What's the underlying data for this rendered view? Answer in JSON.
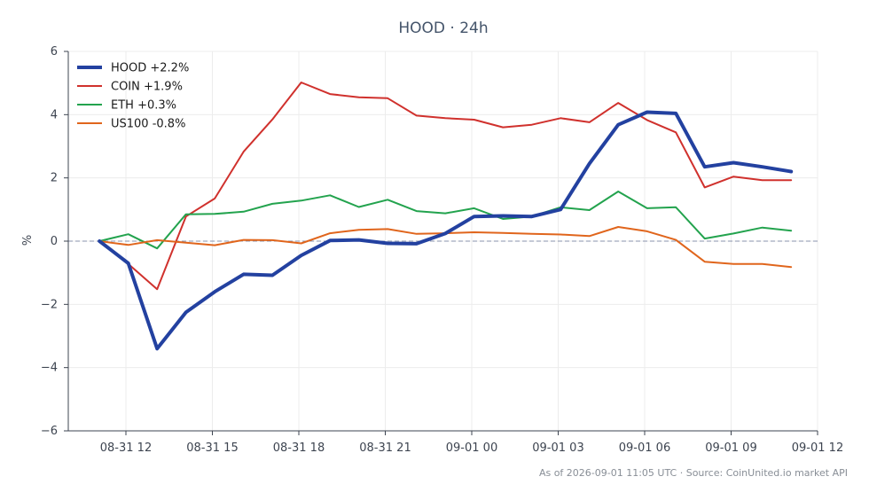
{
  "chart_data": {
    "type": "line",
    "title": "HOOD · 24h",
    "ylabel": "%",
    "xlabel": "",
    "ylim": [
      -6,
      6
    ],
    "yticks": [
      -6,
      -4,
      -2,
      0,
      2,
      4,
      6
    ],
    "ytick_labels": [
      "−6",
      "−4",
      "−2",
      "0",
      "2",
      "4",
      "6"
    ],
    "xlim": [
      "2026-08-31 10:00",
      "2026-09-01 12:00"
    ],
    "xticks": [
      "2026-08-31 12:00",
      "2026-08-31 15:00",
      "2026-08-31 18:00",
      "2026-08-31 21:00",
      "2026-09-01 00:00",
      "2026-09-01 03:00",
      "2026-09-01 06:00",
      "2026-09-01 09:00",
      "2026-09-01 12:00"
    ],
    "xtick_labels": [
      "08-31 12",
      "08-31 15",
      "08-31 18",
      "08-31 21",
      "09-01 00",
      "09-01 03",
      "09-01 06",
      "09-01 09",
      "09-01 12"
    ],
    "x": [
      "2026-08-31 11:05",
      "2026-08-31 12:05",
      "2026-08-31 13:05",
      "2026-08-31 14:05",
      "2026-08-31 15:05",
      "2026-08-31 16:05",
      "2026-08-31 17:05",
      "2026-08-31 18:05",
      "2026-08-31 19:05",
      "2026-08-31 20:05",
      "2026-08-31 21:05",
      "2026-08-31 22:05",
      "2026-08-31 23:05",
      "2026-09-01 00:05",
      "2026-09-01 01:05",
      "2026-09-01 02:05",
      "2026-09-01 03:05",
      "2026-09-01 04:05",
      "2026-09-01 05:05",
      "2026-09-01 06:05",
      "2026-09-01 07:05",
      "2026-09-01 08:05",
      "2026-09-01 09:05",
      "2026-09-01 10:05",
      "2026-09-01 11:05"
    ],
    "series": [
      {
        "name": "HOOD +2.2%",
        "color": "#2341a0",
        "highlight": true,
        "values": [
          0.0,
          -0.7,
          -3.4,
          -2.25,
          -1.6,
          -1.05,
          -1.08,
          -0.45,
          0.02,
          0.04,
          -0.07,
          -0.08,
          0.24,
          0.78,
          0.8,
          0.78,
          1.0,
          2.45,
          3.68,
          4.08,
          4.04,
          2.35,
          2.48,
          2.35,
          2.2
        ]
      },
      {
        "name": "COIN +1.9%",
        "color": "#d0312d",
        "values": [
          0.0,
          -0.72,
          -1.52,
          0.78,
          1.35,
          2.83,
          3.85,
          5.02,
          4.65,
          4.55,
          4.52,
          3.97,
          3.89,
          3.84,
          3.6,
          3.68,
          3.89,
          3.76,
          4.37,
          3.83,
          3.44,
          1.7,
          2.04,
          1.93,
          1.93
        ]
      },
      {
        "name": "ETH +0.3%",
        "color": "#23a34e",
        "values": [
          0.0,
          0.22,
          -0.23,
          0.85,
          0.86,
          0.93,
          1.18,
          1.28,
          1.45,
          1.08,
          1.31,
          0.95,
          0.88,
          1.04,
          0.7,
          0.78,
          1.07,
          0.98,
          1.57,
          1.04,
          1.07,
          0.08,
          0.24,
          0.43,
          0.33
        ]
      },
      {
        "name": "US100 -0.8%",
        "color": "#e0651c",
        "values": [
          0.0,
          -0.12,
          0.03,
          -0.05,
          -0.13,
          0.04,
          0.03,
          -0.07,
          0.25,
          0.36,
          0.38,
          0.23,
          0.25,
          0.28,
          0.26,
          0.23,
          0.21,
          0.16,
          0.45,
          0.31,
          0.04,
          -0.65,
          -0.72,
          -0.72,
          -0.82
        ]
      }
    ],
    "legend": "top-left",
    "grid": true,
    "zero_line": true
  },
  "footer": "As of 2026-09-01 11:05 UTC · Source: CoinUnited.io market API"
}
